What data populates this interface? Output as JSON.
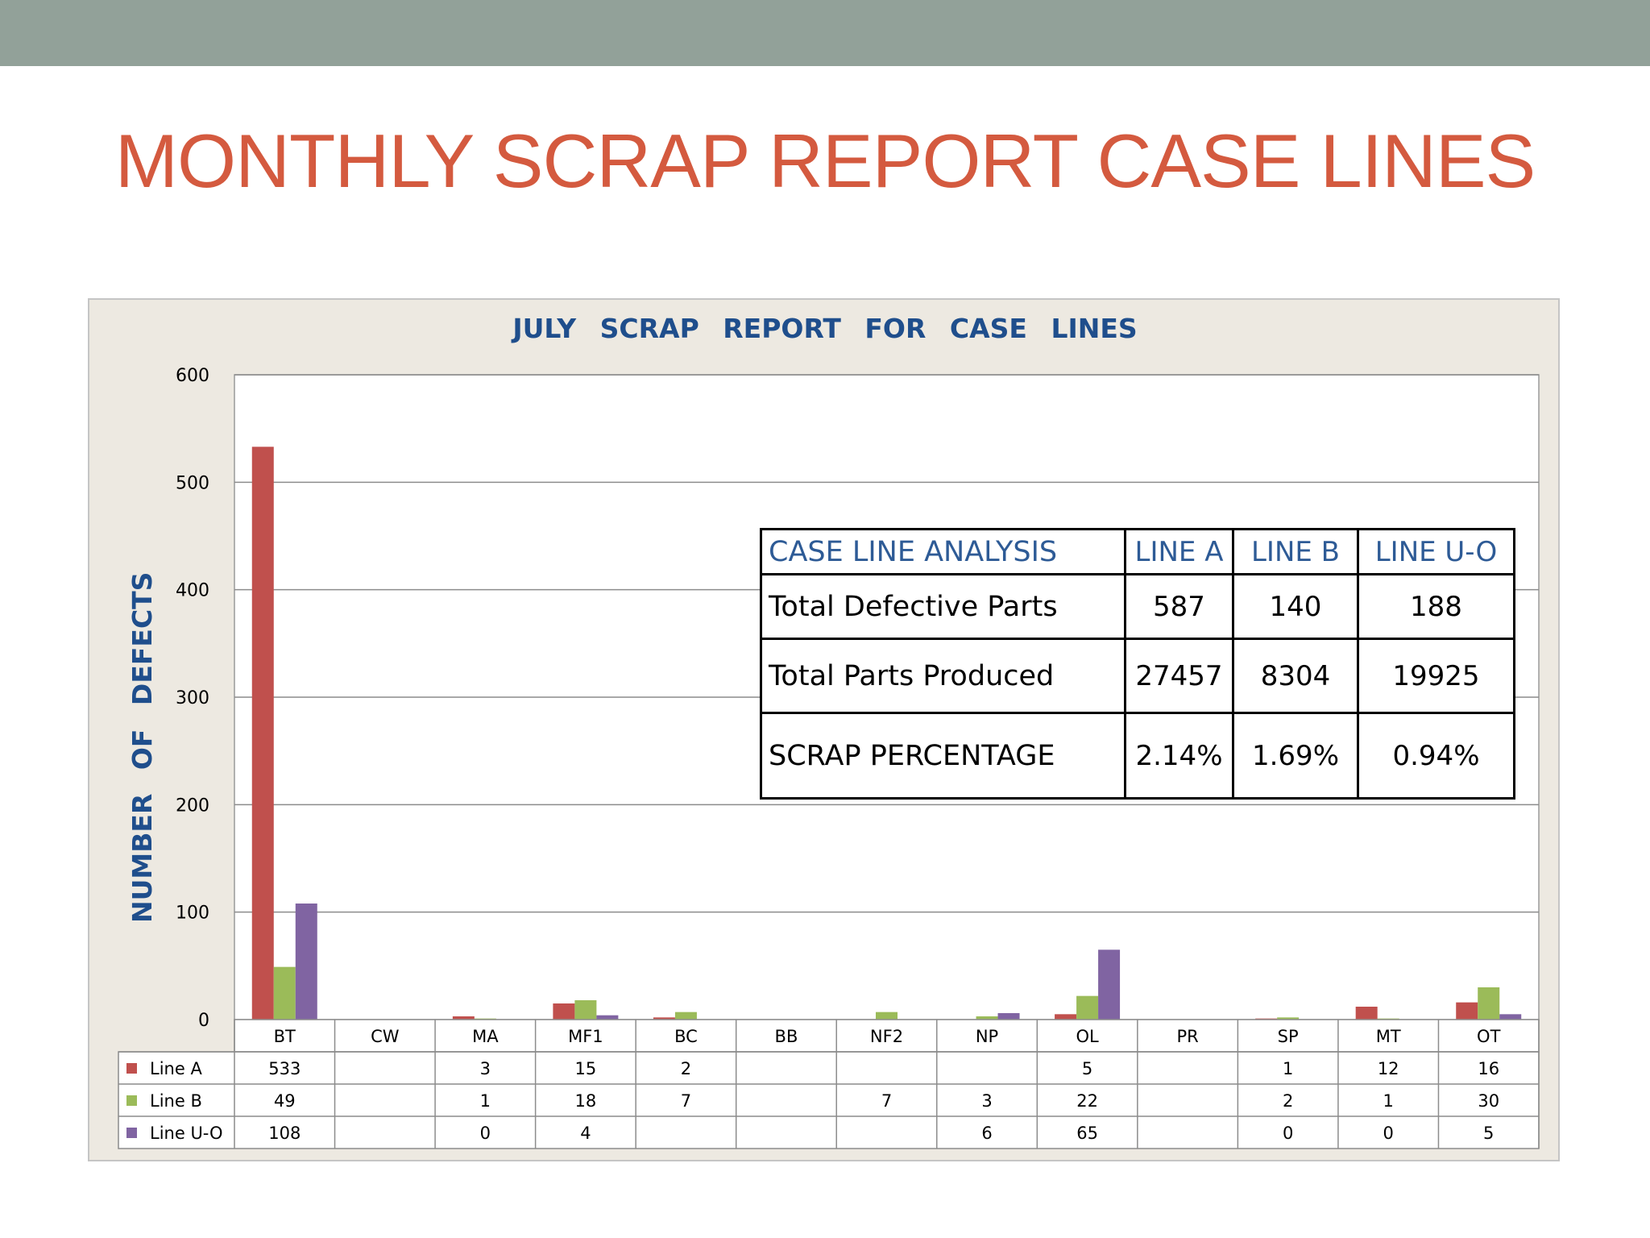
{
  "slide": {
    "title": "MONTHLY SCRAP REPORT CASE LINES"
  },
  "chart_data": {
    "type": "bar",
    "title": "JULY SCRAP REPORT FOR CASE LINES",
    "xlabel": "",
    "ylabel": "NUMBER OF DEFECTS",
    "ylim": [
      0,
      600
    ],
    "yticks": [
      0,
      100,
      200,
      300,
      400,
      500,
      600
    ],
    "grid": true,
    "legend": "data-table",
    "categories": [
      "BT",
      "CW",
      "MA",
      "MF1",
      "BC",
      "BB",
      "NF2",
      "NP",
      "OL",
      "PR",
      "SP",
      "MT",
      "OT"
    ],
    "series": [
      {
        "name": "Line A",
        "color": "#c0504d",
        "values": [
          533,
          null,
          3,
          15,
          2,
          null,
          null,
          null,
          5,
          null,
          1,
          12,
          16
        ]
      },
      {
        "name": "Line B",
        "color": "#9bbb59",
        "values": [
          49,
          null,
          1,
          18,
          7,
          null,
          7,
          3,
          22,
          null,
          2,
          1,
          30
        ]
      },
      {
        "name": "Line U-O",
        "color": "#8064a2",
        "values": [
          108,
          null,
          0,
          4,
          null,
          null,
          null,
          6,
          65,
          null,
          0,
          0,
          5
        ]
      }
    ]
  },
  "analysis_table": {
    "header": [
      "CASE LINE ANALYSIS",
      "LINE A",
      "LINE B",
      "LINE U-O"
    ],
    "rows": [
      [
        "Total Defective Parts",
        "587",
        "140",
        "188"
      ],
      [
        "Total Parts Produced",
        "27457",
        "8304",
        "19925"
      ],
      [
        "SCRAP PERCENTAGE",
        "2.14%",
        "1.69%",
        "0.94%"
      ]
    ]
  }
}
